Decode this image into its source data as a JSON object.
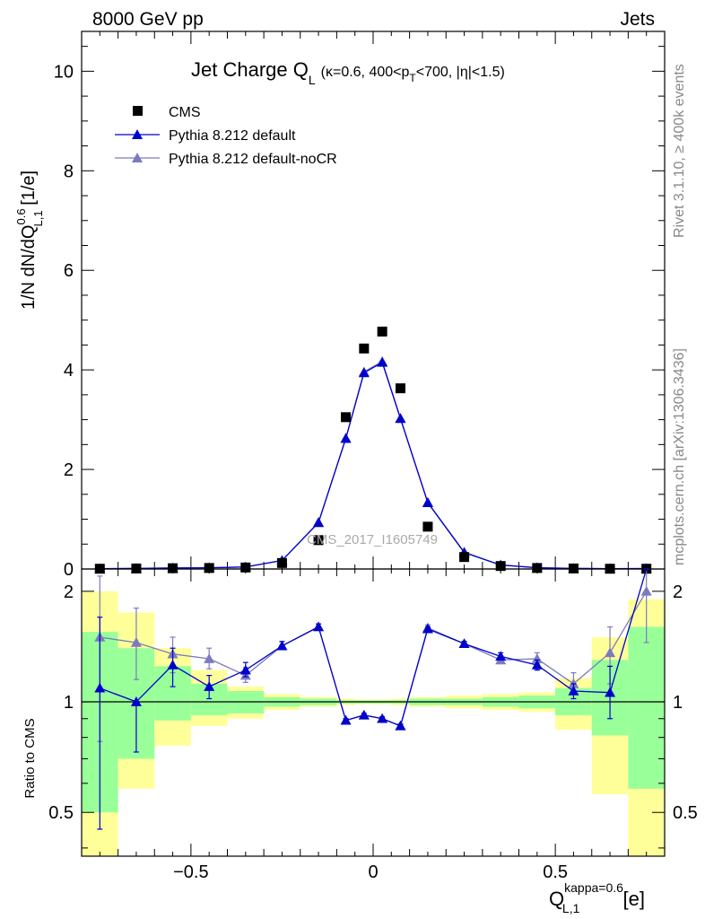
{
  "header": {
    "left": "8000 GeV pp",
    "right": "Jets"
  },
  "side_labels": {
    "rivet": "Rivet 3.1.10, ≥ 400k events",
    "source": "mcplots.cern.ch [arXiv:1306.3436]"
  },
  "watermark": "CMS_2017_I1605749",
  "title": {
    "main": "Jet Charge Q",
    "main_sub": "L",
    "detail_1": "(κ=0.6, 400<p",
    "detail_sub": "T",
    "detail_2": "<700, |η|<1.5)"
  },
  "upper_ylabel": {
    "part1": "1/N dN/dQ",
    "sup": "0.6",
    "sub": "L,1",
    "part2": " [1/e]"
  },
  "lower_ylabel": "Ratio to CMS",
  "xlabel": {
    "main": "Q",
    "sup": "kappa=0.6",
    "sub": "L,1",
    "unit": " [e]"
  },
  "colors": {
    "data": "#000000",
    "default": "#0000cc",
    "noCR": "#7b7bbf",
    "band_inner": "#99ff99",
    "band_outer": "#ffff99"
  },
  "chart_data": [
    {
      "type": "line",
      "panel": "main",
      "x": [
        -0.75,
        -0.65,
        -0.55,
        -0.45,
        -0.35,
        -0.25,
        -0.15,
        -0.075,
        -0.025,
        0.025,
        0.075,
        0.15,
        0.25,
        0.35,
        0.45,
        0.55,
        0.65,
        0.75
      ],
      "xlim": [
        -0.8,
        0.8
      ],
      "ylim": [
        0,
        10.8
      ],
      "y_ticks": [
        0,
        2,
        4,
        6,
        8,
        10
      ],
      "y_tick_labels": [
        "0",
        "2",
        "4",
        "6",
        "8",
        "10"
      ],
      "series": [
        {
          "name": "CMS",
          "marker": "square",
          "values": [
            0.005,
            0.01,
            0.015,
            0.02,
            0.03,
            0.12,
            0.58,
            3.05,
            4.43,
            4.77,
            3.63,
            0.85,
            0.24,
            0.06,
            0.02,
            0.01,
            0.005,
            0.005
          ]
        },
        {
          "name": "Pythia 8.212 default",
          "marker": "triangle",
          "values": [
            0.006,
            0.01,
            0.02,
            0.025,
            0.04,
            0.17,
            0.93,
            2.62,
            3.94,
            4.15,
            3.02,
            1.33,
            0.33,
            0.08,
            0.025,
            0.012,
            0.006,
            0.008
          ]
        },
        {
          "name": "Pythia 8.212 default-noCR",
          "marker": "triangle",
          "values": [
            0.007,
            0.012,
            0.022,
            0.027,
            0.04,
            0.17,
            0.94,
            2.63,
            3.96,
            4.17,
            3.03,
            1.34,
            0.34,
            0.08,
            0.026,
            0.011,
            0.007,
            0.01
          ]
        }
      ]
    },
    {
      "type": "line",
      "panel": "ratio",
      "x": [
        -0.75,
        -0.65,
        -0.55,
        -0.45,
        -0.35,
        -0.25,
        -0.15,
        -0.075,
        -0.025,
        0.025,
        0.075,
        0.15,
        0.25,
        0.35,
        0.45,
        0.55,
        0.65,
        0.75
      ],
      "xlim": [
        -0.8,
        0.8
      ],
      "ylim": [
        0.38,
        2.3
      ],
      "log_y": true,
      "x_ticks": [
        -0.5,
        0,
        0.5
      ],
      "x_tick_labels": [
        "−0.5",
        "0",
        "0.5"
      ],
      "y_ticks": [
        0.5,
        1,
        2
      ],
      "y_tick_labels": [
        "0.5",
        "1",
        "2"
      ],
      "band_bins": [
        [
          -0.8,
          -0.7
        ],
        [
          -0.7,
          -0.6
        ],
        [
          -0.6,
          -0.5
        ],
        [
          -0.5,
          -0.4
        ],
        [
          -0.4,
          -0.3
        ],
        [
          -0.3,
          -0.2
        ],
        [
          -0.2,
          -0.1
        ],
        [
          -0.1,
          -0.05
        ],
        [
          -0.05,
          0
        ],
        [
          0,
          0.05
        ],
        [
          0.05,
          0.1
        ],
        [
          0.1,
          0.2
        ],
        [
          0.2,
          0.3
        ],
        [
          0.3,
          0.4
        ],
        [
          0.4,
          0.5
        ],
        [
          0.5,
          0.6
        ],
        [
          0.6,
          0.7
        ],
        [
          0.7,
          0.8
        ]
      ],
      "band_inner": [
        [
          0.5,
          1.55
        ],
        [
          0.7,
          1.4
        ],
        [
          0.89,
          1.25
        ],
        [
          0.92,
          1.12
        ],
        [
          0.93,
          1.07
        ],
        [
          0.97,
          1.03
        ],
        [
          0.98,
          1.02
        ],
        [
          0.99,
          1.01
        ],
        [
          0.99,
          1.01
        ],
        [
          0.99,
          1.01
        ],
        [
          0.99,
          1.01
        ],
        [
          0.98,
          1.02
        ],
        [
          0.98,
          1.02
        ],
        [
          0.97,
          1.03
        ],
        [
          0.96,
          1.04
        ],
        [
          0.92,
          1.09
        ],
        [
          0.81,
          1.3
        ],
        [
          0.58,
          1.6
        ]
      ],
      "band_outer": [
        [
          0.33,
          2.0
        ],
        [
          0.58,
          1.75
        ],
        [
          0.76,
          1.4
        ],
        [
          0.86,
          1.22
        ],
        [
          0.9,
          1.1
        ],
        [
          0.95,
          1.05
        ],
        [
          0.97,
          1.03
        ],
        [
          0.98,
          1.02
        ],
        [
          0.985,
          1.015
        ],
        [
          0.985,
          1.015
        ],
        [
          0.98,
          1.02
        ],
        [
          0.97,
          1.03
        ],
        [
          0.96,
          1.04
        ],
        [
          0.95,
          1.05
        ],
        [
          0.94,
          1.06
        ],
        [
          0.84,
          1.16
        ],
        [
          0.56,
          1.5
        ],
        [
          0.33,
          1.9
        ]
      ],
      "series": [
        {
          "name": "Pythia 8.212 default",
          "values": [
            1.09,
            1.0,
            1.26,
            1.1,
            1.22,
            1.42,
            1.6,
            0.89,
            0.92,
            0.9,
            0.86,
            1.58,
            1.44,
            1.33,
            1.26,
            1.07,
            1.06,
            2.55
          ],
          "err_low": [
            0.45,
            0.73,
            1.1,
            1.02,
            1.17,
            1.39,
            1.57,
            0.88,
            0.91,
            0.89,
            0.85,
            1.56,
            1.42,
            1.3,
            1.22,
            1.02,
            0.9,
            2.3
          ],
          "err_high": [
            1.7,
            1.0,
            1.4,
            1.18,
            1.28,
            1.46,
            1.63,
            0.9,
            0.93,
            0.91,
            0.87,
            1.6,
            1.46,
            1.36,
            1.3,
            1.12,
            1.25,
            2.8
          ]
        },
        {
          "name": "Pythia 8.212 default-noCR",
          "values": [
            1.5,
            1.45,
            1.35,
            1.31,
            1.18,
            1.42,
            1.6,
            0.89,
            0.92,
            0.9,
            0.86,
            1.59,
            1.44,
            1.3,
            1.31,
            1.12,
            1.36,
            2.0
          ],
          "err_low": [
            0.78,
            1.15,
            1.2,
            1.23,
            1.13,
            1.39,
            1.57,
            0.88,
            0.91,
            0.89,
            0.85,
            1.56,
            1.42,
            1.27,
            1.27,
            1.05,
            1.12,
            1.45
          ],
          "err_high": [
            2.2,
            1.8,
            1.5,
            1.4,
            1.24,
            1.46,
            1.63,
            0.9,
            0.93,
            0.91,
            0.87,
            1.62,
            1.46,
            1.33,
            1.36,
            1.2,
            1.6,
            2.5
          ]
        }
      ]
    }
  ]
}
